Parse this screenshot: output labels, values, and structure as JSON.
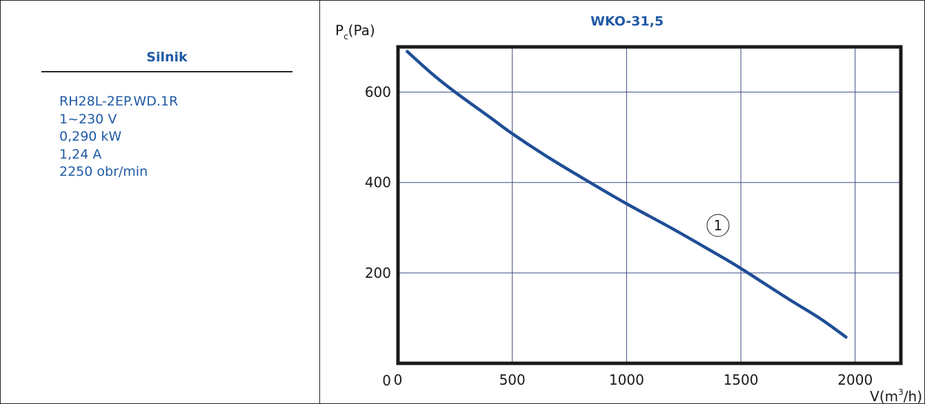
{
  "motor": {
    "title": "Silnik",
    "specs": [
      "RH28L-2EP.WD.1R",
      "1~230 V",
      "0,290 kW",
      "1,24 A",
      "2250 obr/min"
    ]
  },
  "colors": {
    "accent": "#1f5aa6",
    "curve": "#1f4e96",
    "axis": "#1a1a1a",
    "grid": "#3c4b82"
  },
  "chart_data": {
    "type": "line",
    "title": "WKO-31,5",
    "ylabel": {
      "main": "P",
      "sub": "c",
      "unit": "(Pa)"
    },
    "xlabel": {
      "main": "V(m",
      "sup": "3",
      "unit": "/h)"
    },
    "xlim": [
      0,
      2200
    ],
    "ylim": [
      0,
      700
    ],
    "x_ticks": [
      0,
      500,
      1000,
      1500,
      2000
    ],
    "y_ticks": [
      0,
      200,
      400,
      600
    ],
    "grid": true,
    "series": [
      {
        "name": "1",
        "x": [
          40,
          150,
          250,
          400,
          500,
          650,
          800,
          1000,
          1200,
          1400,
          1500,
          1700,
          1850,
          1960
        ],
        "y": [
          690,
          640,
          600,
          545,
          508,
          458,
          412,
          353,
          298,
          240,
          210,
          145,
          98,
          58
        ]
      }
    ],
    "annotations": [
      {
        "text": "1",
        "x": 1400,
        "y": 305
      }
    ]
  }
}
